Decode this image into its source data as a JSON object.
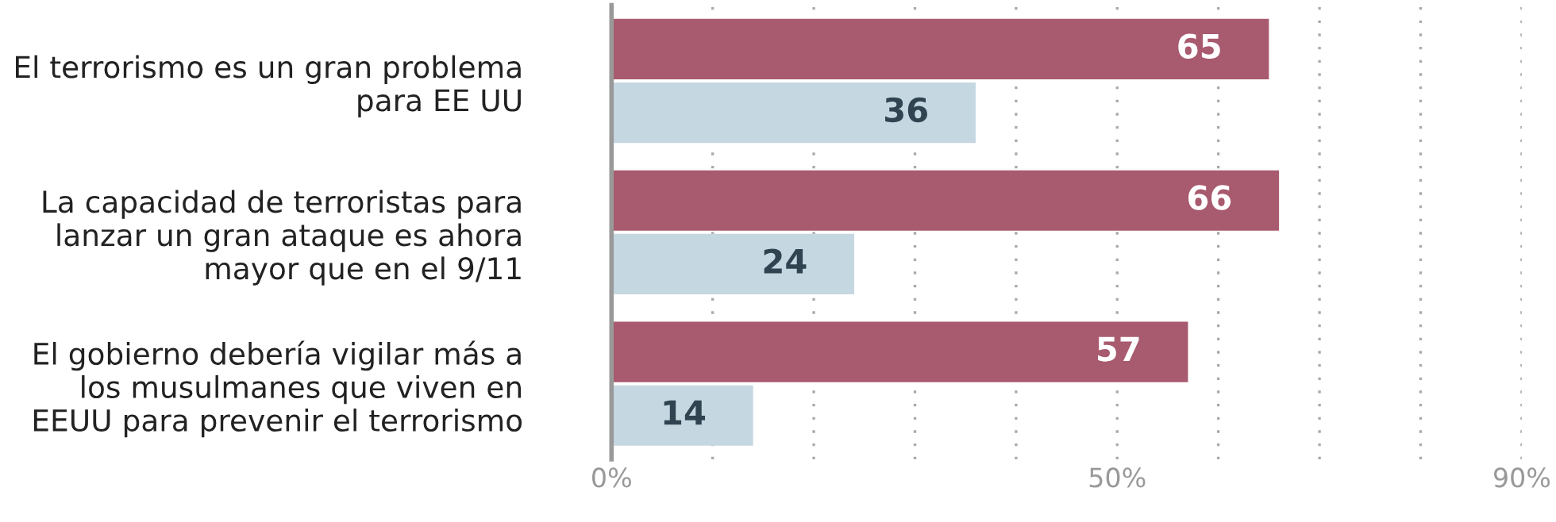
{
  "chart_data": {
    "type": "bar",
    "orientation": "horizontal",
    "categories": [
      "El terrorismo es un gran problema\npara EE UU",
      "La capacidad de terroristas para\nlanzar un gran ataque es ahora\nmayor que en el 9/11",
      "El gobierno debería vigilar más a\nlos musulmanes que viven en\nEEUU para prevenir el terrorismo"
    ],
    "series": [
      {
        "color": "#a85a6e",
        "values": [
          65,
          66,
          57
        ]
      },
      {
        "color": "#c5d7e1",
        "values": [
          36,
          24,
          14
        ]
      }
    ],
    "xlim": [
      0,
      90
    ],
    "xticks": [
      {
        "value": 0,
        "label": "0%"
      },
      {
        "value": 10,
        "label": null
      },
      {
        "value": 20,
        "label": null
      },
      {
        "value": 30,
        "label": null
      },
      {
        "value": 40,
        "label": null
      },
      {
        "value": 50,
        "label": "50%"
      },
      {
        "value": 60,
        "label": null
      },
      {
        "value": 70,
        "label": null
      },
      {
        "value": 80,
        "label": null
      },
      {
        "value": 90,
        "label": "90%"
      }
    ],
    "grid": "x",
    "data_labels": true
  }
}
